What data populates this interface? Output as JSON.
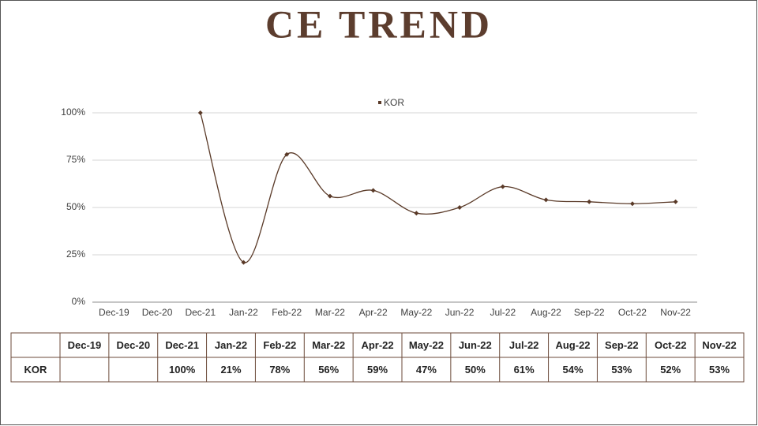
{
  "chart_data": {
    "type": "line",
    "title": "CE TREND",
    "categories": [
      "Dec-19",
      "Dec-20",
      "Dec-21",
      "Jan-22",
      "Feb-22",
      "Mar-22",
      "Apr-22",
      "May-22",
      "Jun-22",
      "Jul-22",
      "Aug-22",
      "Sep-22",
      "Oct-22",
      "Nov-22"
    ],
    "series": [
      {
        "name": "KOR",
        "color": "#5a3a28",
        "values": [
          null,
          null,
          100,
          21,
          78,
          56,
          59,
          47,
          50,
          61,
          54,
          53,
          52,
          53
        ],
        "value_labels": [
          null,
          null,
          "100%",
          "21%",
          "78%",
          "56%",
          "59%",
          "47%",
          "50%",
          "61%",
          "54%",
          "53%",
          "52%",
          "53%"
        ]
      }
    ],
    "ylim": [
      0,
      100
    ],
    "yticks": [
      {
        "value": 0,
        "label": "0%"
      },
      {
        "value": 25,
        "label": "25%"
      },
      {
        "value": 50,
        "label": "50%"
      },
      {
        "value": 75,
        "label": "75%"
      },
      {
        "value": 100,
        "label": "100%"
      }
    ],
    "grid": true,
    "smooth": true,
    "legend": "top"
  }
}
